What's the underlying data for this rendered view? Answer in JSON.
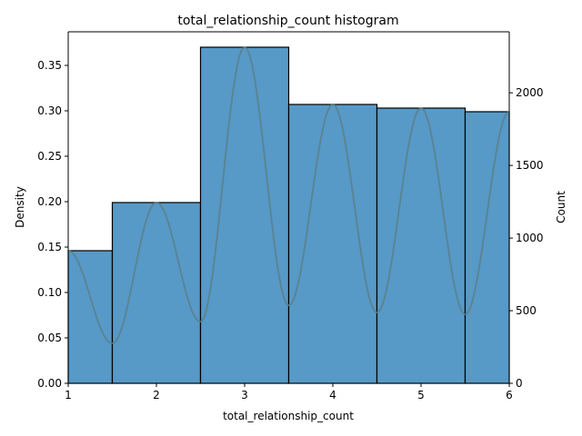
{
  "chart_data": {
    "type": "bar",
    "title": "total_relationship_count histogram",
    "xlabel": "total_relationship_count",
    "ylabel": "Density",
    "y2label": "Count",
    "xlim": [
      1,
      6
    ],
    "ylim": [
      0,
      0.387
    ],
    "y2lim": [
      0,
      2420
    ],
    "xticks": [
      "1",
      "2",
      "3",
      "4",
      "5",
      "6"
    ],
    "yticks": [
      "0.00",
      "0.05",
      "0.10",
      "0.15",
      "0.20",
      "0.25",
      "0.30",
      "0.35"
    ],
    "y2ticks": [
      "0",
      "500",
      "1000",
      "1500",
      "2000"
    ],
    "bins": [
      {
        "start": 1.0,
        "end": 1.5,
        "density": 0.146
      },
      {
        "start": 1.5,
        "end": 2.5,
        "density": 0.199
      },
      {
        "start": 2.5,
        "end": 3.5,
        "density": 0.37
      },
      {
        "start": 3.5,
        "end": 4.5,
        "density": 0.307
      },
      {
        "start": 4.5,
        "end": 5.5,
        "density": 0.303
      },
      {
        "start": 5.5,
        "end": 6.0,
        "density": 0.299
      }
    ],
    "kde": {
      "x": [
        1.0,
        1.5,
        2.0,
        2.5,
        3.0,
        3.5,
        4.0,
        4.5,
        5.0,
        5.5,
        6.0
      ],
      "y": [
        0.146,
        0.044,
        0.199,
        0.068,
        0.37,
        0.086,
        0.307,
        0.078,
        0.303,
        0.076,
        0.299
      ]
    },
    "grid": false,
    "legend": "none",
    "colors": {
      "bar": "#5799c7",
      "edge": "#000000",
      "kde": "#5a7f87"
    }
  }
}
